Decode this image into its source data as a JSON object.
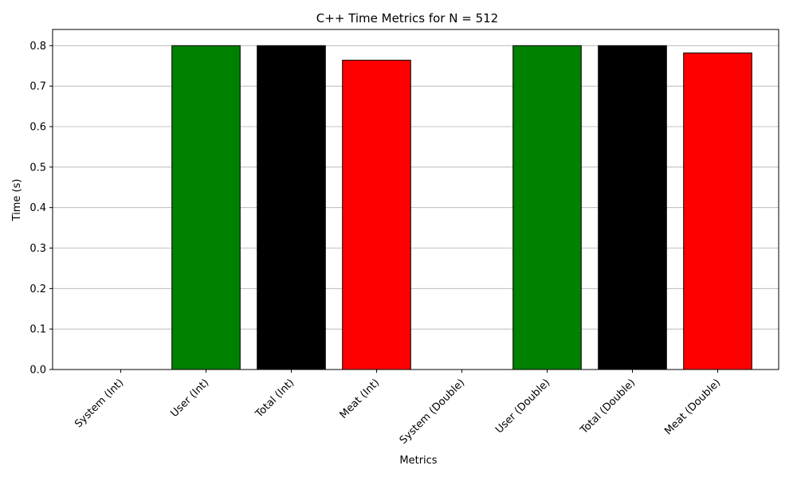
{
  "chart_data": {
    "type": "bar",
    "title": "C++ Time Metrics for N = 512",
    "xlabel": "Metrics",
    "ylabel": "Time (s)",
    "categories": [
      "System (Int)",
      "User (Int)",
      "Total (Int)",
      "Meat (Int)",
      "System (Double)",
      "User (Double)",
      "Total (Double)",
      "Meat (Double)"
    ],
    "values": [
      0.0,
      0.8,
      0.8,
      0.764,
      0.0,
      0.8,
      0.8,
      0.782
    ],
    "colors": [
      "#008000",
      "#008000",
      "#000000",
      "#ff0000",
      "#008000",
      "#008000",
      "#000000",
      "#ff0000"
    ],
    "ylim": [
      0,
      0.84
    ],
    "yticks": [
      0.0,
      0.1,
      0.2,
      0.3,
      0.4,
      0.5,
      0.6,
      0.7,
      0.8
    ],
    "ytick_labels": [
      "0.0",
      "0.1",
      "0.2",
      "0.3",
      "0.4",
      "0.5",
      "0.6",
      "0.7",
      "0.8"
    ],
    "grid": "y",
    "legend": "none"
  }
}
